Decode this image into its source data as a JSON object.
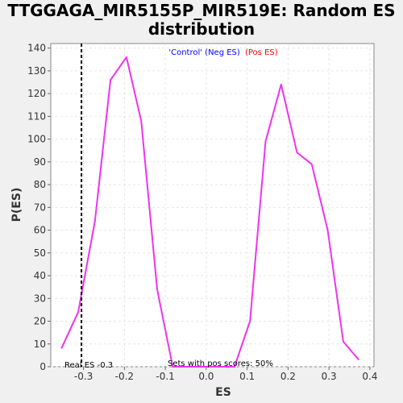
{
  "chart_data": {
    "type": "line",
    "title_line1": "TTGGAGA_MIR5155P_MIR519E: Random ES",
    "title_line2": "distribution",
    "xlabel": "ES",
    "ylabel": "P(ES)",
    "xlim": [
      -0.38,
      0.41
    ],
    "ylim": [
      0,
      142
    ],
    "xticks": [
      -0.3,
      -0.2,
      -0.1,
      0.0,
      0.1,
      0.2,
      0.3,
      0.4
    ],
    "xtick_labels": [
      "-0.3",
      "-0.2",
      "-0.1",
      "0.0",
      "0.1",
      "0.2",
      "0.3",
      "0.4"
    ],
    "yticks": [
      0,
      10,
      20,
      30,
      40,
      50,
      60,
      70,
      80,
      90,
      100,
      110,
      120,
      130,
      140
    ],
    "ytick_labels": [
      "0",
      "10",
      "20",
      "30",
      "40",
      "50",
      "60",
      "70",
      "80",
      "90",
      "100",
      "110",
      "120",
      "130",
      "140"
    ],
    "grid": true,
    "legend": {
      "placement": "top-center",
      "neg_label": "'Control' (Neg ES)",
      "pos_label": "(Pos ES)",
      "neg_color": "#0000ff",
      "pos_color": "#ff0000"
    },
    "series": [
      {
        "color": "#ee33ee",
        "x": [
          -0.354,
          -0.313,
          -0.272,
          -0.234,
          -0.195,
          -0.159,
          -0.12,
          -0.082,
          -0.044,
          -0.007,
          0.031,
          0.069,
          0.107,
          0.145,
          0.183,
          0.222,
          0.258,
          0.297,
          0.335,
          0.373
        ],
        "y": [
          8,
          24,
          64,
          126,
          136,
          108,
          34,
          0,
          0,
          0,
          0,
          0,
          20,
          99,
          124,
          94,
          89,
          60,
          11,
          3
        ]
      }
    ],
    "real_es": -0.305,
    "real_es_label": "Real ES -0.3",
    "pos_scores_label": "Sets with pos scores: 50%"
  }
}
